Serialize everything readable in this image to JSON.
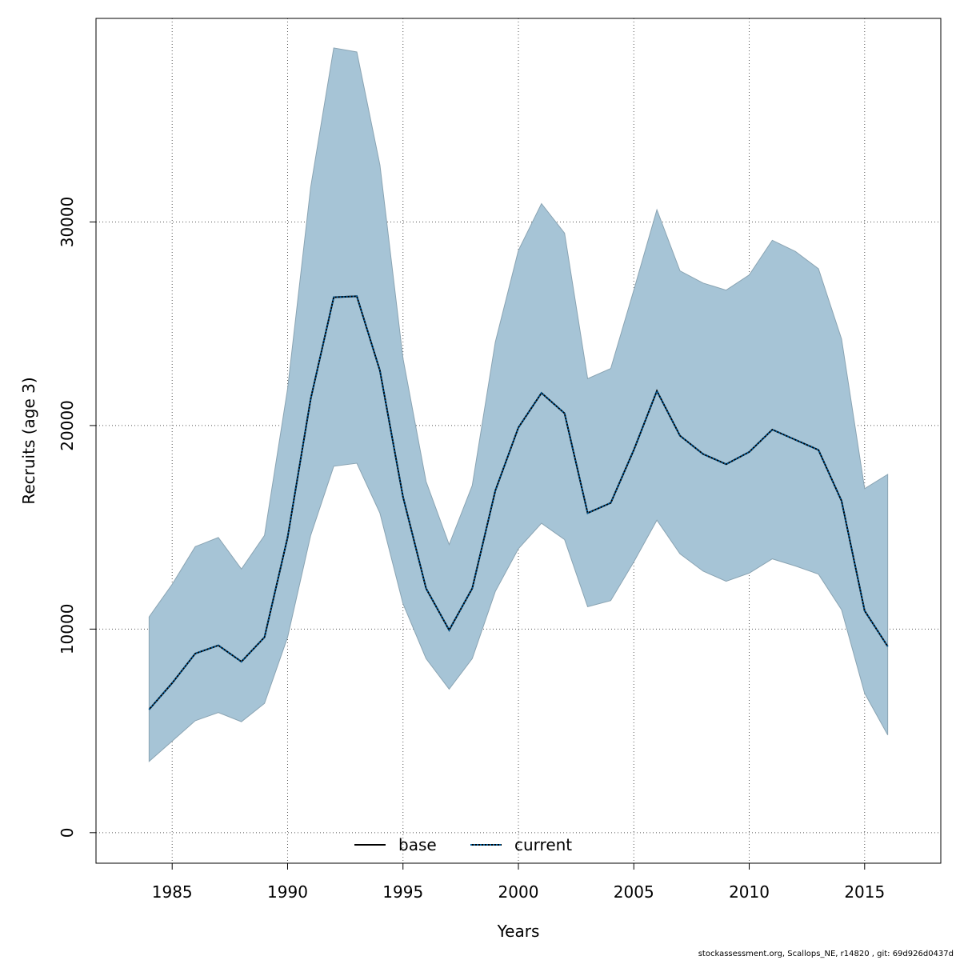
{
  "chart_data": {
    "type": "area",
    "xlabel": "Years",
    "ylabel": "Recruits (age 3)",
    "x_ticks": [
      1985,
      1990,
      1995,
      2000,
      2005,
      2010,
      2015
    ],
    "y_ticks": [
      0,
      10000,
      20000,
      30000
    ],
    "xlim": [
      1981.7,
      2018.3
    ],
    "ylim": [
      -1500,
      40000
    ],
    "grid": true,
    "legend": {
      "placement": "bottom",
      "entries": [
        "base",
        "current"
      ]
    },
    "x": [
      1984,
      1985,
      1986,
      1987,
      1988,
      1989,
      1990,
      1991,
      1992,
      1993,
      1994,
      1995,
      1996,
      1997,
      1998,
      1999,
      2000,
      2001,
      2002,
      2003,
      2004,
      2005,
      2006,
      2007,
      2008,
      2009,
      2010,
      2011,
      2012,
      2013,
      2014,
      2015,
      2016
    ],
    "series": [
      {
        "name": "current",
        "style": "dotted",
        "color": "#005b9a",
        "values": [
          6050,
          7350,
          8800,
          9200,
          8400,
          9600,
          14500,
          21300,
          26300,
          26350,
          22700,
          16500,
          12000,
          9950,
          12000,
          16800,
          19900,
          21600,
          20600,
          15700,
          16200,
          18800,
          21700,
          19500,
          18600,
          18100,
          18700,
          19800,
          19300,
          18800,
          16300,
          10900,
          9150
        ]
      }
    ],
    "band": {
      "color": "#a6c4d6",
      "lower": [
        3500,
        4500,
        5500,
        5900,
        5450,
        6350,
        9600,
        14600,
        18000,
        18150,
        15700,
        11250,
        8550,
        7050,
        8550,
        11850,
        13950,
        15200,
        14400,
        11100,
        11400,
        13300,
        15350,
        13700,
        12850,
        12350,
        12750,
        13450,
        13100,
        12700,
        10950,
        6850,
        4800
      ],
      "upper": [
        10600,
        12200,
        14050,
        14500,
        12950,
        14600,
        21800,
        31700,
        38550,
        38350,
        32800,
        23300,
        17250,
        14150,
        17050,
        24100,
        28600,
        30900,
        29450,
        22300,
        22800,
        26650,
        30600,
        27600,
        27000,
        26650,
        27400,
        29100,
        28550,
        27700,
        24250,
        16900,
        17600
      ]
    }
  },
  "footer_text": "stockassessment.org, Scallops_NE, r14820 , git: 69d926d0437d"
}
